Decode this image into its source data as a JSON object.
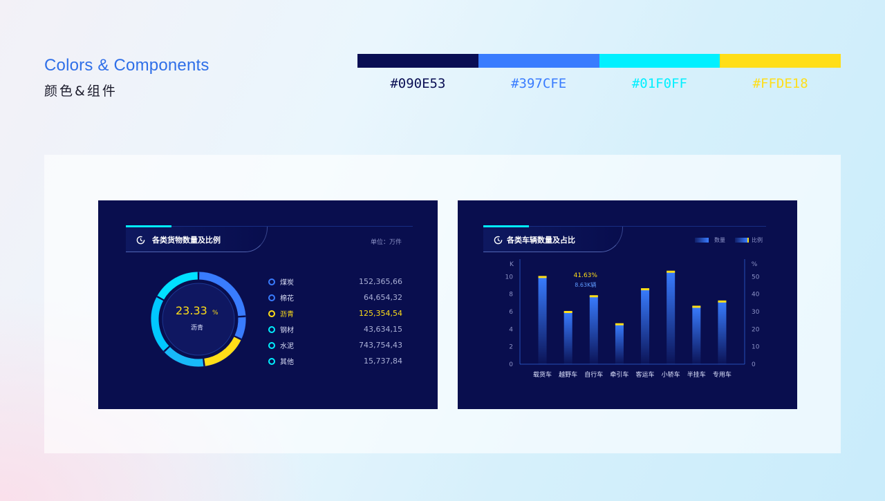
{
  "header": {
    "title": "Colors & Components",
    "subtitle": "颜色&组件"
  },
  "palette": [
    {
      "code": "#090E53",
      "color": "#090e53"
    },
    {
      "code": "#397CFE",
      "color": "#397cfe"
    },
    {
      "code": "#01F0FF",
      "color": "#01f0ff"
    },
    {
      "code": "#FFDE18",
      "color": "#ffde18"
    }
  ],
  "left_panel": {
    "title": "各类货物数量及比例",
    "unit": "单位：万件",
    "center_value": "23.33",
    "center_unit": "%",
    "center_label": "沥青",
    "items": [
      {
        "label": "煤炭",
        "value": "152,365,66",
        "color": "#397cfe"
      },
      {
        "label": "棉花",
        "value": "64,654,32",
        "color": "#397cfe"
      },
      {
        "label": "沥青",
        "value": "125,354,54",
        "color": "#ffde18"
      },
      {
        "label": "钢材",
        "value": "43,634,15",
        "color": "#01f0ff"
      },
      {
        "label": "水泥",
        "value": "743,754,43",
        "color": "#01f0ff"
      },
      {
        "label": "其他",
        "value": "15,737,84",
        "color": "#01f0ff"
      }
    ]
  },
  "right_panel": {
    "title": "各类车辆数量及占比",
    "legend": {
      "quantity": "数量",
      "ratio": "比例"
    },
    "tooltip": {
      "ratio": "41.63%",
      "quantity": "8.63K辆"
    }
  },
  "chart_data": {
    "type": "bar",
    "categories": [
      "载货车",
      "越野车",
      "自行车",
      "牵引车",
      "客运车",
      "小轿车",
      "半挂车",
      "专用车"
    ],
    "values": [
      10.0,
      6.0,
      7.8,
      4.6,
      8.6,
      10.6,
      6.6,
      7.2
    ],
    "ylabel": "K",
    "ylim": [
      0,
      12
    ],
    "yticks": [
      0,
      2,
      4,
      6,
      8,
      10
    ],
    "y2label": "%",
    "y2lim": [
      0,
      60
    ],
    "y2ticks": [
      0,
      10,
      20,
      30,
      40,
      50
    ],
    "legend_position": "top-right",
    "grid": false
  },
  "donut_data": {
    "type": "pie",
    "segments": [
      {
        "value": 24,
        "color": "#397cfe"
      },
      {
        "value": 8,
        "color": "#397cfe"
      },
      {
        "value": 16,
        "color": "#ffde18"
      },
      {
        "value": 15,
        "color": "#18b9f8"
      },
      {
        "value": 20,
        "color": "#01c8ff"
      },
      {
        "value": 17,
        "color": "#01e0ff"
      }
    ]
  }
}
